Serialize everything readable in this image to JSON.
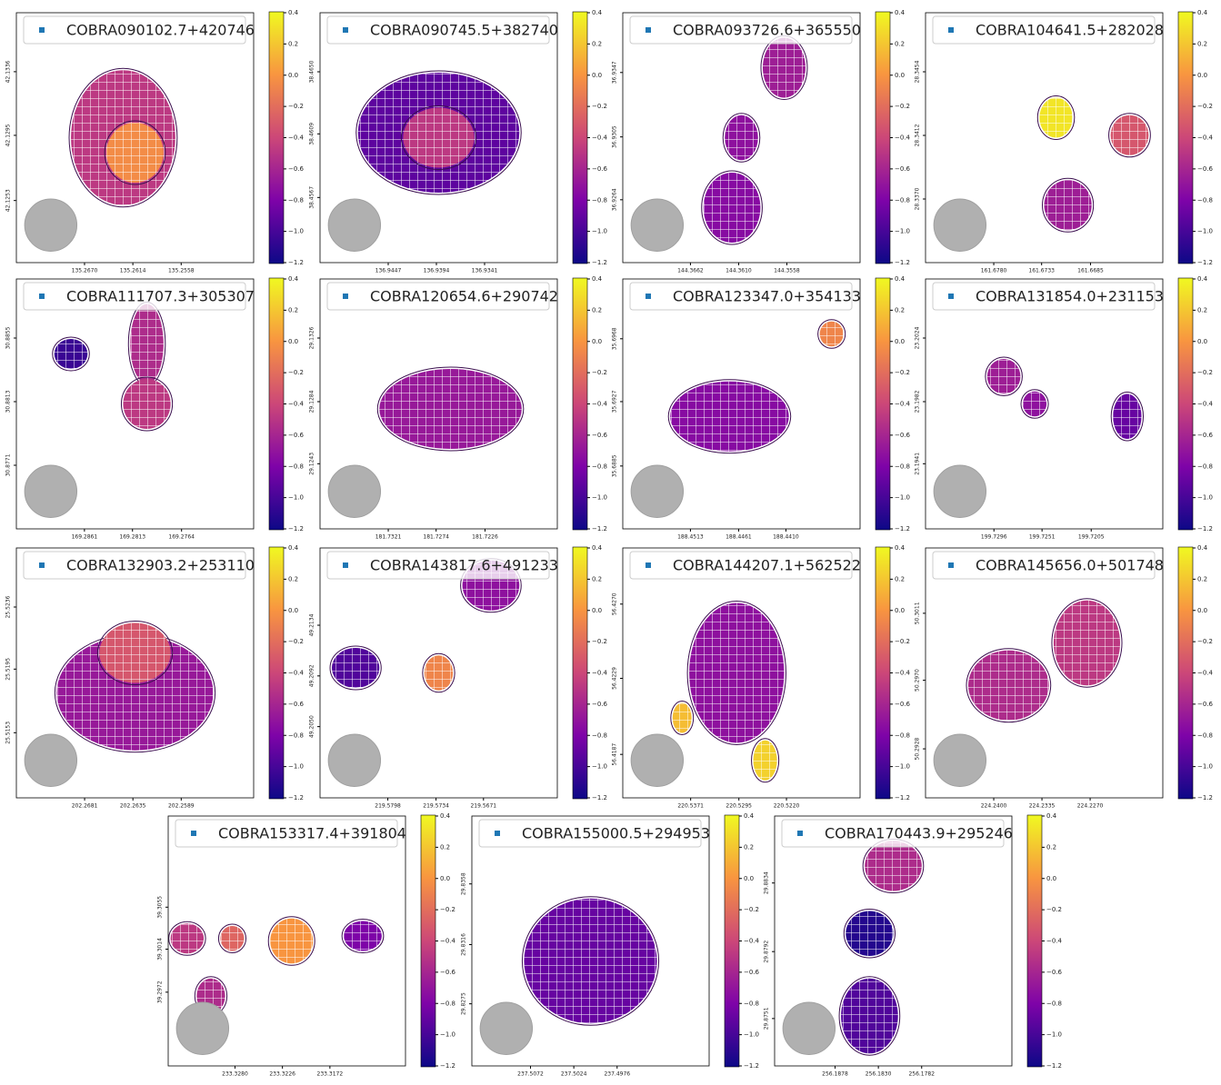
{
  "colorbar": {
    "lim": [
      -1.2,
      0.4
    ],
    "cmap": "plasma",
    "ticks": [
      0.4,
      0.2,
      {
        "value": 0,
        "label": "0.0"
      },
      {
        "value": -0.2,
        "label": "−0.2"
      },
      {
        "value": -0.4,
        "label": "−0.4"
      },
      {
        "value": -0.6,
        "label": "−0.6"
      },
      {
        "value": -0.8,
        "label": "−0.8"
      },
      {
        "value": -1.0,
        "label": "−1.0"
      },
      {
        "value": -1.2,
        "label": "−1.2"
      }
    ]
  },
  "chart_data": [
    {
      "type": "image",
      "legend_label": "COBRA090102.7+420746",
      "legend_color": "#1f77b4",
      "xlim": [
        135.2749,
        135.2474
      ],
      "xticks": [
        {
          "value": 135.267,
          "label": "135.2670"
        },
        135.2614,
        135.2558
      ],
      "ylim": [
        42.1213,
        42.1374
      ],
      "yticks": [
        42.1336,
        42.1295,
        42.1253
      ]
    },
    {
      "type": "image",
      "legend_label": "COBRA090745.5+382740",
      "legend_color": "#1f77b4",
      "xlim": [
        136.9522,
        136.9261
      ],
      "xticks": [
        136.9447,
        136.9394,
        136.9341
      ],
      "ylim": [
        38.4524,
        38.4689
      ],
      "yticks": [
        {
          "value": 38.465,
          "label": "38.4650"
        },
        38.4609,
        38.4567
      ]
    },
    {
      "type": "image",
      "legend_label": "COBRA093726.6+365550",
      "legend_color": "#1f77b4",
      "xlim": [
        144.3735,
        144.3479
      ],
      "xticks": [
        144.3662,
        {
          "value": 144.361,
          "label": "144.3610"
        },
        144.3558
      ],
      "ylim": [
        36.9223,
        36.9386
      ],
      "yticks": [
        36.9347,
        36.9305,
        36.9264
      ]
    },
    {
      "type": "image",
      "legend_label": "COBRA104641.5+282028",
      "legend_color": "#1f77b4",
      "xlim": [
        161.6847,
        161.6614
      ],
      "xticks": [
        {
          "value": 161.678,
          "label": "161.6780"
        },
        161.6733,
        161.6685
      ],
      "ylim": [
        28.3328,
        28.3493
      ],
      "yticks": [
        28.3454,
        28.3412,
        {
          "value": 28.337,
          "label": "28.3370"
        }
      ]
    },
    {
      "type": "image",
      "legend_label": "COBRA111707.3+305307",
      "legend_color": "#1f77b4",
      "xlim": [
        169.2929,
        169.2692
      ],
      "xticks": [
        169.2861,
        169.2813,
        169.2764
      ],
      "ylim": [
        30.8729,
        30.8894
      ],
      "yticks": [
        30.8855,
        30.8813,
        30.8771
      ]
    },
    {
      "type": "image",
      "legend_label": "COBRA120654.6+290742",
      "legend_color": "#1f77b4",
      "xlim": [
        181.7388,
        181.7155
      ],
      "xticks": [
        181.7321,
        181.7274,
        181.7226
      ],
      "ylim": [
        29.12,
        29.1365
      ],
      "yticks": [
        29.1326,
        29.1284,
        29.1243
      ]
    },
    {
      "type": "image",
      "legend_label": "COBRA123347.0+354133",
      "legend_color": "#1f77b4",
      "xlim": [
        188.4586,
        188.433
      ],
      "xticks": [
        188.4513,
        188.4461,
        {
          "value": 188.441,
          "label": "188.4410"
        }
      ],
      "ylim": [
        35.6844,
        35.7007
      ],
      "yticks": [
        35.6968,
        35.6927,
        35.6885
      ]
    },
    {
      "type": "image",
      "legend_label": "COBRA131854.0+231153",
      "legend_color": "#1f77b4",
      "xlim": [
        199.736,
        199.7138
      ],
      "xticks": [
        199.7296,
        199.7251,
        199.7205
      ],
      "ylim": [
        23.1898,
        23.2063
      ],
      "yticks": [
        23.2024,
        23.1982,
        23.1941
      ]
    },
    {
      "type": "image",
      "legend_label": "COBRA132903.2+253110",
      "legend_color": "#1f77b4",
      "xlim": [
        202.2746,
        202.252
      ],
      "xticks": [
        202.2681,
        202.2635,
        202.2589
      ],
      "ylim": [
        25.511,
        25.5275
      ],
      "yticks": [
        25.5236,
        25.5195,
        25.5153
      ]
    },
    {
      "type": "image",
      "legend_label": "COBRA143817.6+491233",
      "legend_color": "#1f77b4",
      "xlim": [
        219.5888,
        219.5573
      ],
      "xticks": [
        219.5798,
        219.5734,
        219.5671
      ],
      "ylim": [
        49.1991,
        49.2198
      ],
      "yticks": [
        49.2134,
        49.2092,
        {
          "value": 49.205,
          "label": "49.2050"
        }
      ]
    },
    {
      "type": "image",
      "legend_label": "COBRA144207.1+562522",
      "legend_color": "#1f77b4",
      "xlim": [
        220.5478,
        220.5104
      ],
      "xticks": [
        220.5371,
        220.5295,
        {
          "value": 220.522,
          "label": "220.5220"
        }
      ],
      "ylim": [
        56.4163,
        56.4301
      ],
      "yticks": [
        {
          "value": 56.427,
          "label": "56.4270"
        },
        56.4229,
        56.4187
      ]
    },
    {
      "type": "image",
      "legend_label": "COBRA145656.0+501748",
      "legend_color": "#1f77b4",
      "xlim": [
        224.2492,
        224.2172
      ],
      "xticks": [
        {
          "value": 224.24,
          "label": "224.2400"
        },
        224.2335,
        {
          "value": 224.227,
          "label": "224.2270"
        }
      ],
      "ylim": [
        50.2898,
        50.3051
      ],
      "yticks": [
        50.3011,
        {
          "value": 50.297,
          "label": "50.2970"
        },
        50.2928
      ]
    },
    {
      "type": "image",
      "legend_label": "COBRA153317.4+391804",
      "legend_color": "#1f77b4",
      "xlim": [
        233.3356,
        233.3086
      ],
      "xticks": [
        {
          "value": 233.328,
          "label": "233.3280"
        },
        233.3226,
        233.3172
      ],
      "ylim": [
        39.29,
        39.3144
      ],
      "yticks": [
        39.3055,
        39.3014,
        39.2972
      ]
    },
    {
      "type": "image",
      "legend_label": "COBRA155000.5+294953",
      "legend_color": "#1f77b4",
      "xlim": [
        237.5137,
        237.4874
      ],
      "xticks": [
        237.5072,
        237.5024,
        237.4976
      ],
      "ylim": [
        29.8232,
        29.8405
      ],
      "yticks": [
        29.8358,
        29.8316,
        29.8275
      ]
    },
    {
      "type": "image",
      "legend_label": "COBRA170443.9+295246",
      "legend_color": "#1f77b4",
      "xlim": [
        256.1945,
        256.1682
      ],
      "xticks": [
        256.1878,
        {
          "value": 256.183,
          "label": "256.1830"
        },
        256.1782
      ],
      "ylim": [
        29.8722,
        29.8875
      ],
      "yticks": [
        29.8834,
        29.8792,
        29.8751
      ]
    }
  ]
}
